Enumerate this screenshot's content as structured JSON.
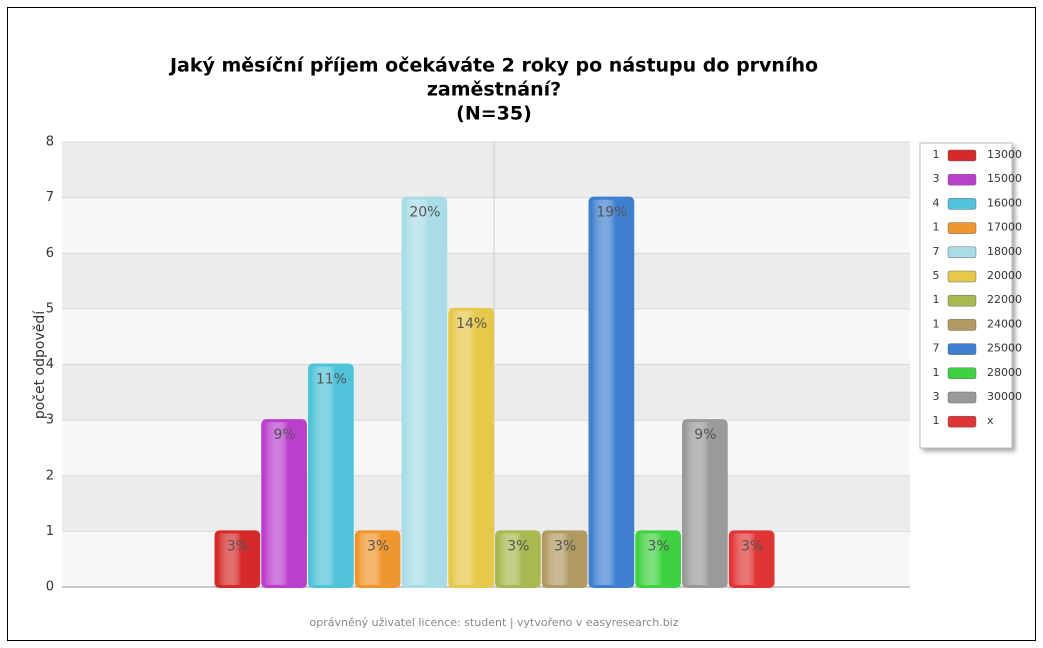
{
  "chart_data": {
    "type": "bar",
    "title": [
      "Jaký měsíční příjem očekáváte 2 roky po nástupu do prvního",
      "zaměstnání?"
    ],
    "subtitle": "(N=35)",
    "y_label": "počet odpovědí",
    "footer": "oprávněný uživatel licence: student | vytvořeno v easyresearch.biz",
    "categories": [
      "13000",
      "15000",
      "16000",
      "17000",
      "18000",
      "20000",
      "22000",
      "24000",
      "25000",
      "28000",
      "30000",
      "x"
    ],
    "values": [
      1,
      3,
      4,
      1,
      7,
      5,
      1,
      1,
      7,
      1,
      3,
      1
    ],
    "value_labels": [
      "3%",
      "9%",
      "11%",
      "3%",
      "20%",
      "14%",
      "3%",
      "3%",
      "19%",
      "3%",
      "9%",
      "3%"
    ],
    "colors": [
      "#d42a2a",
      "#b93fcc",
      "#4fc3d9",
      "#f0962e",
      "#a8dce6",
      "#e6c84a",
      "#a9b850",
      "#b09a62",
      "#3e7fcf",
      "#3fd13f",
      "#9a9a9a",
      "#e03535"
    ],
    "ylim": [
      0,
      8
    ],
    "yticks": [
      0,
      1,
      2,
      3,
      4,
      5,
      6,
      7,
      8
    ],
    "grid": true,
    "legend": "right"
  }
}
